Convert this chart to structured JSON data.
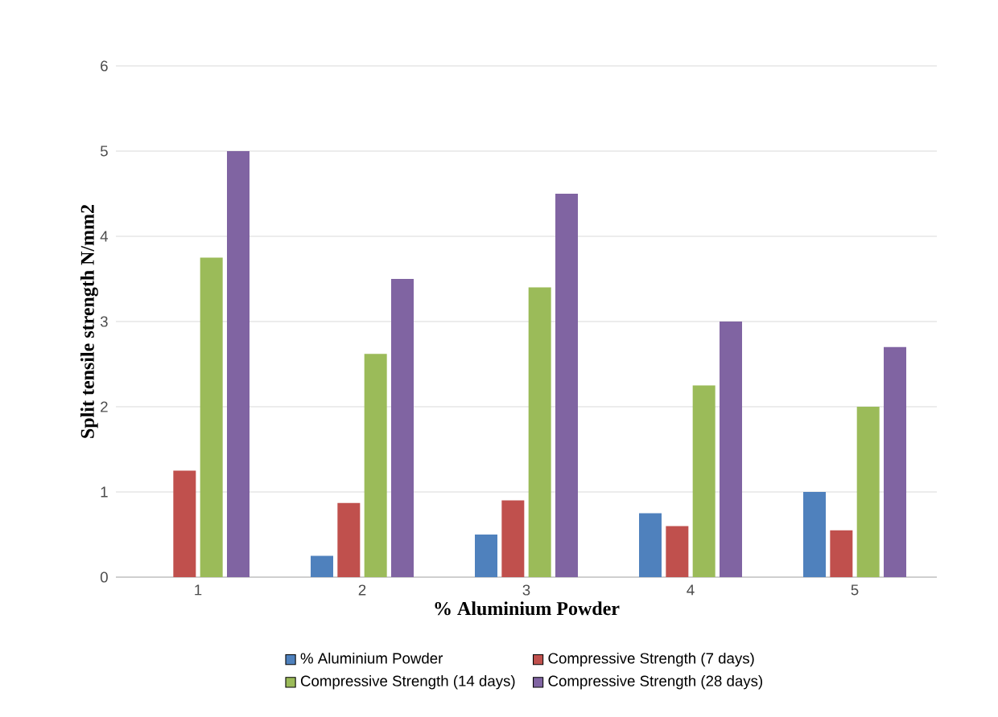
{
  "chart_data": {
    "type": "bar",
    "xlabel": "% Aluminium Powder",
    "ylabel": "Split tensile strength N/mm2",
    "categories": [
      "1",
      "2",
      "3",
      "4",
      "5"
    ],
    "series": [
      {
        "name": "% Aluminium Powder",
        "color": "#4f81bd",
        "values": [
          0,
          0.25,
          0.5,
          0.75,
          1.0
        ]
      },
      {
        "name": "Compressive Strength  (7 days)",
        "color": "#c0504d",
        "values": [
          1.25,
          0.87,
          0.9,
          0.6,
          0.55
        ]
      },
      {
        "name": "Compressive Strength  (14 days)",
        "color": "#9bbb59",
        "values": [
          3.75,
          2.62,
          3.4,
          2.25,
          2.0
        ]
      },
      {
        "name": "Compressive Strength  (28 days)",
        "color": "#8064a2",
        "values": [
          5.0,
          3.5,
          4.5,
          3.0,
          2.7
        ]
      }
    ],
    "ylim": [
      0,
      6
    ],
    "yticks": [
      0,
      1,
      2,
      3,
      4,
      5,
      6
    ],
    "grid": "y",
    "legend": "bottom"
  }
}
